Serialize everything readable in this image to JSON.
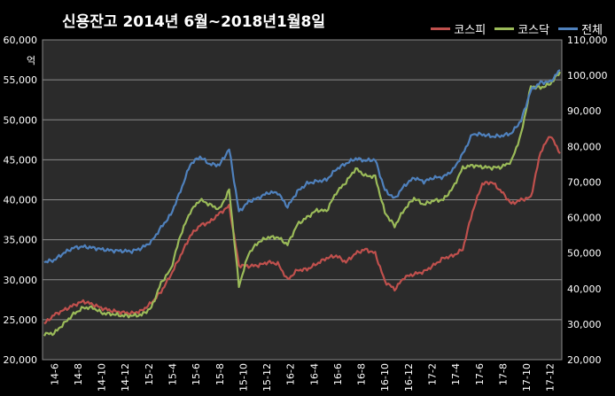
{
  "chart_data": {
    "type": "line",
    "title": "신용잔고 2014년 6월~2018년1월8일",
    "left_axis_unit": "억",
    "y_left": {
      "ylim": [
        20000,
        60000
      ],
      "ticks": [
        20000,
        25000,
        30000,
        35000,
        40000,
        45000,
        50000,
        55000,
        60000
      ],
      "tick_labels": [
        "20,000",
        "25,000",
        "30,000",
        "35,000",
        "40,000",
        "45,000",
        "50,000",
        "55,000",
        "60,000"
      ]
    },
    "y_right": {
      "ylim": [
        20000,
        110000
      ],
      "ticks": [
        20000,
        30000,
        40000,
        50000,
        60000,
        70000,
        80000,
        90000,
        100000,
        110000
      ],
      "tick_labels": [
        "20,000",
        "30,000",
        "40,000",
        "50,000",
        "60,000",
        "70,000",
        "80,000",
        "90,000",
        "100,000",
        "110,000"
      ]
    },
    "x_tick_labels": [
      "14-6",
      "14-8",
      "14-10",
      "14-12",
      "15-2",
      "15-4",
      "15-6",
      "15-8",
      "15-10",
      "15-12",
      "16-2",
      "16-4",
      "16-6",
      "16-8",
      "16-10",
      "16-12",
      "17-2",
      "17-4",
      "17-6",
      "17-8",
      "17-10",
      "17-12"
    ],
    "grid": "horizontal",
    "legend": "top-right",
    "series": [
      {
        "name": "코스피",
        "axis": "left",
        "color": "#c0504d",
        "values": [
          24500,
          25600,
          26200,
          26800,
          27300,
          26900,
          26400,
          26100,
          25900,
          25800,
          26100,
          27100,
          28500,
          30600,
          33000,
          35500,
          36800,
          37200,
          38300,
          39200,
          31800,
          31700,
          31800,
          32200,
          32000,
          30000,
          31200,
          31300,
          32000,
          32700,
          33000,
          32200,
          33300,
          33800,
          33300,
          29800,
          28800,
          30300,
          30700,
          31000,
          31800,
          32700,
          33000,
          33800,
          38500,
          42000,
          42200,
          41000,
          39500,
          40000,
          40300,
          46000,
          48100,
          45800
        ]
      },
      {
        "name": "코스닥",
        "axis": "left",
        "color": "#9bbb59",
        "values": [
          23200,
          23300,
          24500,
          25700,
          26500,
          26500,
          25800,
          25700,
          25500,
          25500,
          25600,
          26500,
          29600,
          31300,
          35600,
          38500,
          40000,
          39400,
          38800,
          41200,
          29200,
          33300,
          34700,
          35300,
          35300,
          34400,
          36900,
          37800,
          38700,
          38600,
          40900,
          42200,
          43900,
          43000,
          42900,
          38400,
          36700,
          38800,
          40200,
          39400,
          39900,
          40000,
          41500,
          44000,
          44300,
          44100,
          44000,
          44100,
          44800,
          48200,
          54200,
          54000,
          54500,
          56000
        ]
      },
      {
        "name": "전체",
        "axis": "right",
        "color": "#4f81bd",
        "values": [
          47500,
          48000,
          50000,
          51500,
          51800,
          51500,
          51000,
          50700,
          50600,
          50500,
          51400,
          53200,
          57200,
          60800,
          67500,
          75000,
          77100,
          75000,
          74800,
          79300,
          61600,
          64500,
          65500,
          67000,
          67000,
          63000,
          67300,
          69600,
          70200,
          70600,
          73600,
          75200,
          76600,
          76000,
          76300,
          67700,
          65300,
          69000,
          71200,
          70100,
          71200,
          71400,
          73400,
          77900,
          83500,
          83400,
          82800,
          83000,
          83700,
          87300,
          95800,
          98000,
          98200,
          101500
        ]
      }
    ]
  }
}
